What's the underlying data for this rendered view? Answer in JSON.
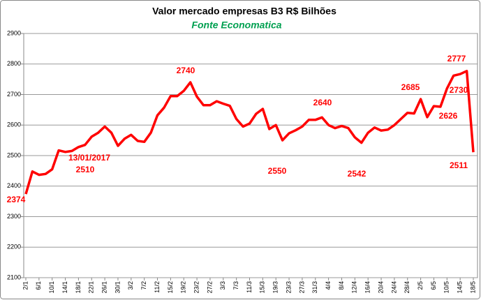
{
  "chart_data": {
    "type": "line",
    "title": "Valor mercado empresas B3  R$ Bilhões",
    "subtitle": "Fonte Economatica",
    "categories": [
      "2/1",
      null,
      "6/1",
      null,
      "10/1",
      null,
      "14/1",
      null,
      "18/1",
      null,
      "22/1",
      null,
      "26/1",
      null,
      "30/1",
      null,
      "3/2",
      null,
      "7/2",
      null,
      "11/2",
      null,
      "15/2",
      null,
      "19/2",
      null,
      "23/2",
      null,
      "27/2",
      null,
      "3/3",
      null,
      "7/3",
      null,
      "11/3",
      null,
      "15/3",
      null,
      "19/3",
      null,
      "23/3",
      null,
      "27/3",
      null,
      "31/3",
      null,
      "4/4",
      null,
      "8/4",
      null,
      "12/4",
      null,
      "16/4",
      null,
      "20/4",
      null,
      "24/4",
      null,
      "28/4",
      null,
      "2/5",
      null,
      "6/5",
      null,
      "10/5",
      null,
      "14/5",
      null,
      "18/5"
    ],
    "series": [
      {
        "name": "Valor mercado",
        "color": "#ff0000",
        "values": [
          2374,
          2448,
          2437,
          2440,
          2455,
          2517,
          2512,
          2515,
          2528,
          2535,
          2562,
          2575,
          2595,
          2575,
          2532,
          2555,
          2568,
          2548,
          2545,
          2575,
          2632,
          2657,
          2695,
          2695,
          2712,
          2740,
          2693,
          2665,
          2665,
          2678,
          2670,
          2663,
          2620,
          2595,
          2605,
          2637,
          2653,
          2587,
          2600,
          2550,
          2573,
          2583,
          2595,
          2617,
          2617,
          2625,
          2600,
          2590,
          2597,
          2590,
          2560,
          2542,
          2575,
          2592,
          2582,
          2585,
          2600,
          2620,
          2640,
          2638,
          2685,
          2626,
          2662,
          2660,
          2720,
          2762,
          2767,
          2777,
          2511
        ]
      }
    ],
    "annotations": [
      "2374",
      "13/01/2017",
      "2510",
      "2740",
      "2550",
      "2640",
      "2542",
      "2685",
      "2777",
      "2730",
      "2626",
      "2511"
    ],
    "ylim": [
      2100,
      2900
    ],
    "yticks": [
      2100,
      2200,
      2300,
      2400,
      2500,
      2600,
      2700,
      2800,
      2900
    ],
    "grid": true
  }
}
